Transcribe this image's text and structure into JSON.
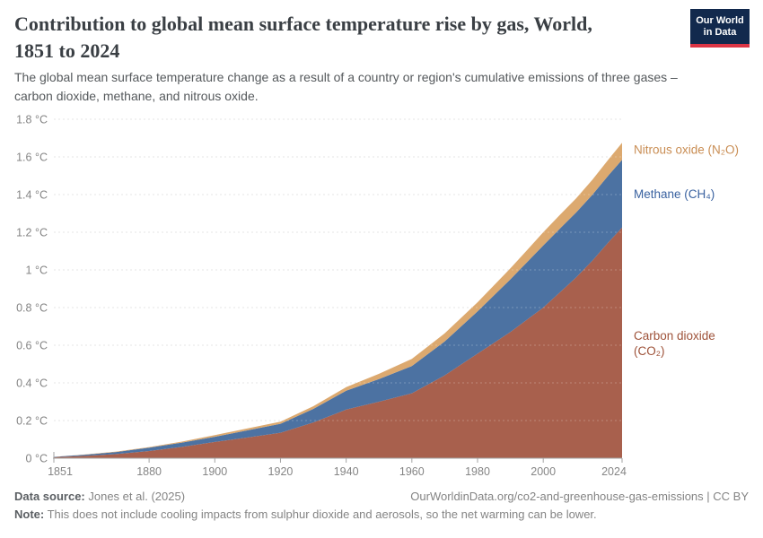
{
  "header": {
    "title_lines": [
      "Contribution to global mean surface temperature rise by gas, World,",
      "1851 to 2024"
    ],
    "logo": {
      "line1": "Our World",
      "line2": "in Data",
      "bg_color": "#12294d",
      "stripe_color": "#dc3545"
    }
  },
  "subtitle_lines": [
    "The global mean surface temperature change as a result of a country or region's cumulative emissions of three gases –",
    "carbon dioxide, methane, and nitrous oxide."
  ],
  "chart_data": {
    "type": "area",
    "stacked": true,
    "title": "Contribution to global mean surface temperature rise by gas, World, 1851 to 2024",
    "xlabel": "",
    "ylabel": "",
    "grid": "dashed-horizontal",
    "legend_position": "right-of-plot",
    "ylim": [
      0,
      1.8
    ],
    "ytick_values": [
      0,
      0.2,
      0.4,
      0.6,
      0.8,
      1,
      1.2,
      1.4,
      1.6,
      1.8
    ],
    "ytick_labels": [
      "0 °C",
      "0.2 °C",
      "0.4 °C",
      "0.6 °C",
      "0.8 °C",
      "1 °C",
      "1.2 °C",
      "1.4 °C",
      "1.6 °C",
      "1.8 °C"
    ],
    "xtick_values": [
      1851,
      1880,
      1900,
      1920,
      1940,
      1960,
      1980,
      2000,
      2024
    ],
    "xtick_labels": [
      "1851",
      "1880",
      "1900",
      "1920",
      "1940",
      "1960",
      "1980",
      "2000",
      "2024"
    ],
    "x": [
      1851,
      1860,
      1870,
      1880,
      1890,
      1900,
      1910,
      1920,
      1930,
      1940,
      1950,
      1960,
      1970,
      1980,
      1990,
      1995,
      2000,
      2005,
      2010,
      2015,
      2020,
      2024
    ],
    "series": [
      {
        "id": "co2",
        "name": "Carbon dioxide (CO₂)",
        "label_lines": [
          "Carbon dioxide",
          "(CO₂)"
        ],
        "color": "#a8604d",
        "label_color": "#9e5239",
        "values": [
          0.005,
          0.012,
          0.022,
          0.038,
          0.06,
          0.086,
          0.11,
          0.135,
          0.19,
          0.258,
          0.3,
          0.345,
          0.44,
          0.555,
          0.67,
          0.735,
          0.8,
          0.88,
          0.96,
          1.05,
          1.15,
          1.225
        ]
      },
      {
        "id": "ch4",
        "name": "Methane (CH₄)",
        "label_lines": [
          "Methane (CH₄)"
        ],
        "color": "#4c72a2",
        "label_color": "#3a62a0",
        "values": [
          0.002,
          0.006,
          0.011,
          0.018,
          0.023,
          0.028,
          0.038,
          0.048,
          0.072,
          0.1,
          0.12,
          0.144,
          0.18,
          0.225,
          0.28,
          0.305,
          0.33,
          0.338,
          0.345,
          0.35,
          0.355,
          0.36
        ]
      },
      {
        "id": "n2o",
        "name": "Nitrous oxide (N₂O)",
        "label_lines": [
          "Nitrous oxide (N₂O)"
        ],
        "color": "#dca96f",
        "label_color": "#c98d53",
        "values": [
          0.0,
          0.001,
          0.002,
          0.003,
          0.005,
          0.009,
          0.01,
          0.011,
          0.014,
          0.019,
          0.028,
          0.038,
          0.043,
          0.048,
          0.058,
          0.064,
          0.07,
          0.073,
          0.075,
          0.08,
          0.085,
          0.09
        ]
      }
    ]
  },
  "footer": {
    "source_prefix": "Data source:",
    "source_text": " Jones et al. (2025)",
    "url_text": "OurWorldinData.org/co2-and-greenhouse-gas-emissions | CC BY",
    "note_prefix": "Note:",
    "note_text": " This does not include cooling impacts from sulphur dioxide and aerosols, so the net warming can be lower."
  }
}
